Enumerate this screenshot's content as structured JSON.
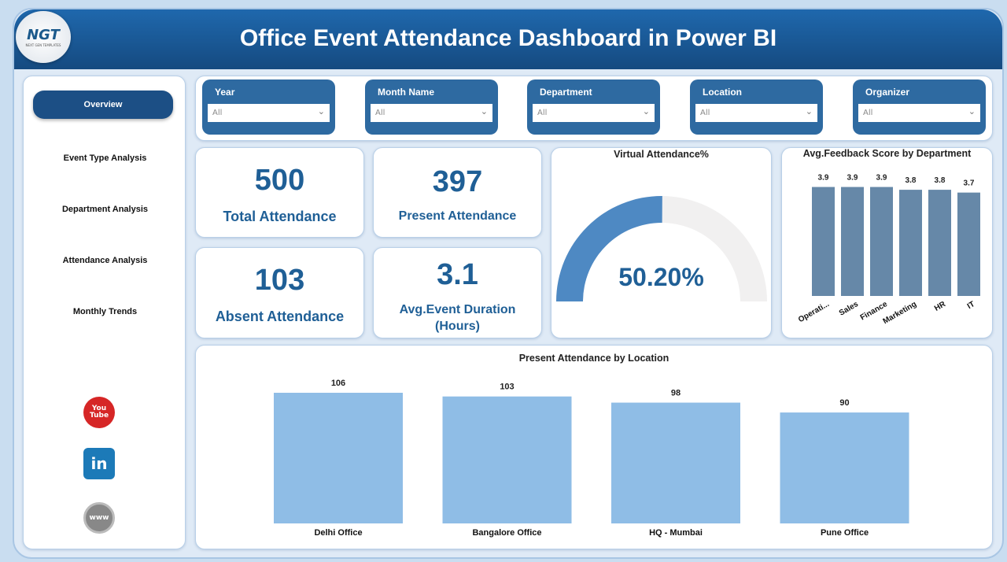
{
  "header": {
    "title": "Office Event Attendance Dashboard in Power BI",
    "logo_text": "NGT",
    "logo_sub": "NEXT GEN TEMPLATES"
  },
  "sidebar": {
    "items": [
      {
        "label": "Overview"
      },
      {
        "label": "Event Type Analysis"
      },
      {
        "label": "Department Analysis"
      },
      {
        "label": "Attendance Analysis"
      },
      {
        "label": "Monthly Trends"
      }
    ],
    "social": [
      {
        "icon": "youtube-icon",
        "label": "You Tube"
      },
      {
        "icon": "linkedin-icon",
        "label": "in"
      },
      {
        "icon": "globe-icon",
        "label": "www"
      }
    ]
  },
  "filters": [
    {
      "label": "Year",
      "value": "All"
    },
    {
      "label": "Month Name",
      "value": "All"
    },
    {
      "label": "Department",
      "value": "All"
    },
    {
      "label": "Location",
      "value": "All"
    },
    {
      "label": "Organizer",
      "value": "All"
    }
  ],
  "kpis": [
    {
      "value": "500",
      "label": "Total Attendance"
    },
    {
      "value": "397",
      "label": "Present Attendance"
    },
    {
      "value": "103",
      "label": "Absent Attendance"
    },
    {
      "value": "3.1",
      "label": "Avg.Event Duration (Hours)"
    }
  ],
  "gauge": {
    "title": "Virtual Attendance%",
    "value_label": "50.20%",
    "percent": 50.2,
    "fill_color": "#4e89c3",
    "track_color": "#f1f0f0"
  },
  "chart_data": [
    {
      "type": "bar",
      "title": "Avg.Feedback Score by Department",
      "categories": [
        "Operati...",
        "Sales",
        "Finance",
        "Marketing",
        "HR",
        "IT"
      ],
      "values": [
        3.9,
        3.9,
        3.9,
        3.8,
        3.8,
        3.7
      ],
      "data_labels": [
        "3.9",
        "3.9",
        "3.9",
        "3.8",
        "3.8",
        "3.7"
      ],
      "ylim": [
        0,
        4
      ],
      "color": "#6688a8",
      "grid": false
    },
    {
      "type": "bar",
      "title": "Present Attendance by Location",
      "categories": [
        "Delhi Office",
        "Bangalore Office",
        "HQ - Mumbai",
        "Pune Office"
      ],
      "values": [
        106,
        103,
        98,
        90
      ],
      "data_labels": [
        "106",
        "103",
        "98",
        "90"
      ],
      "ylim": [
        0,
        106
      ],
      "color": "#8fbde6",
      "grid": false
    }
  ]
}
